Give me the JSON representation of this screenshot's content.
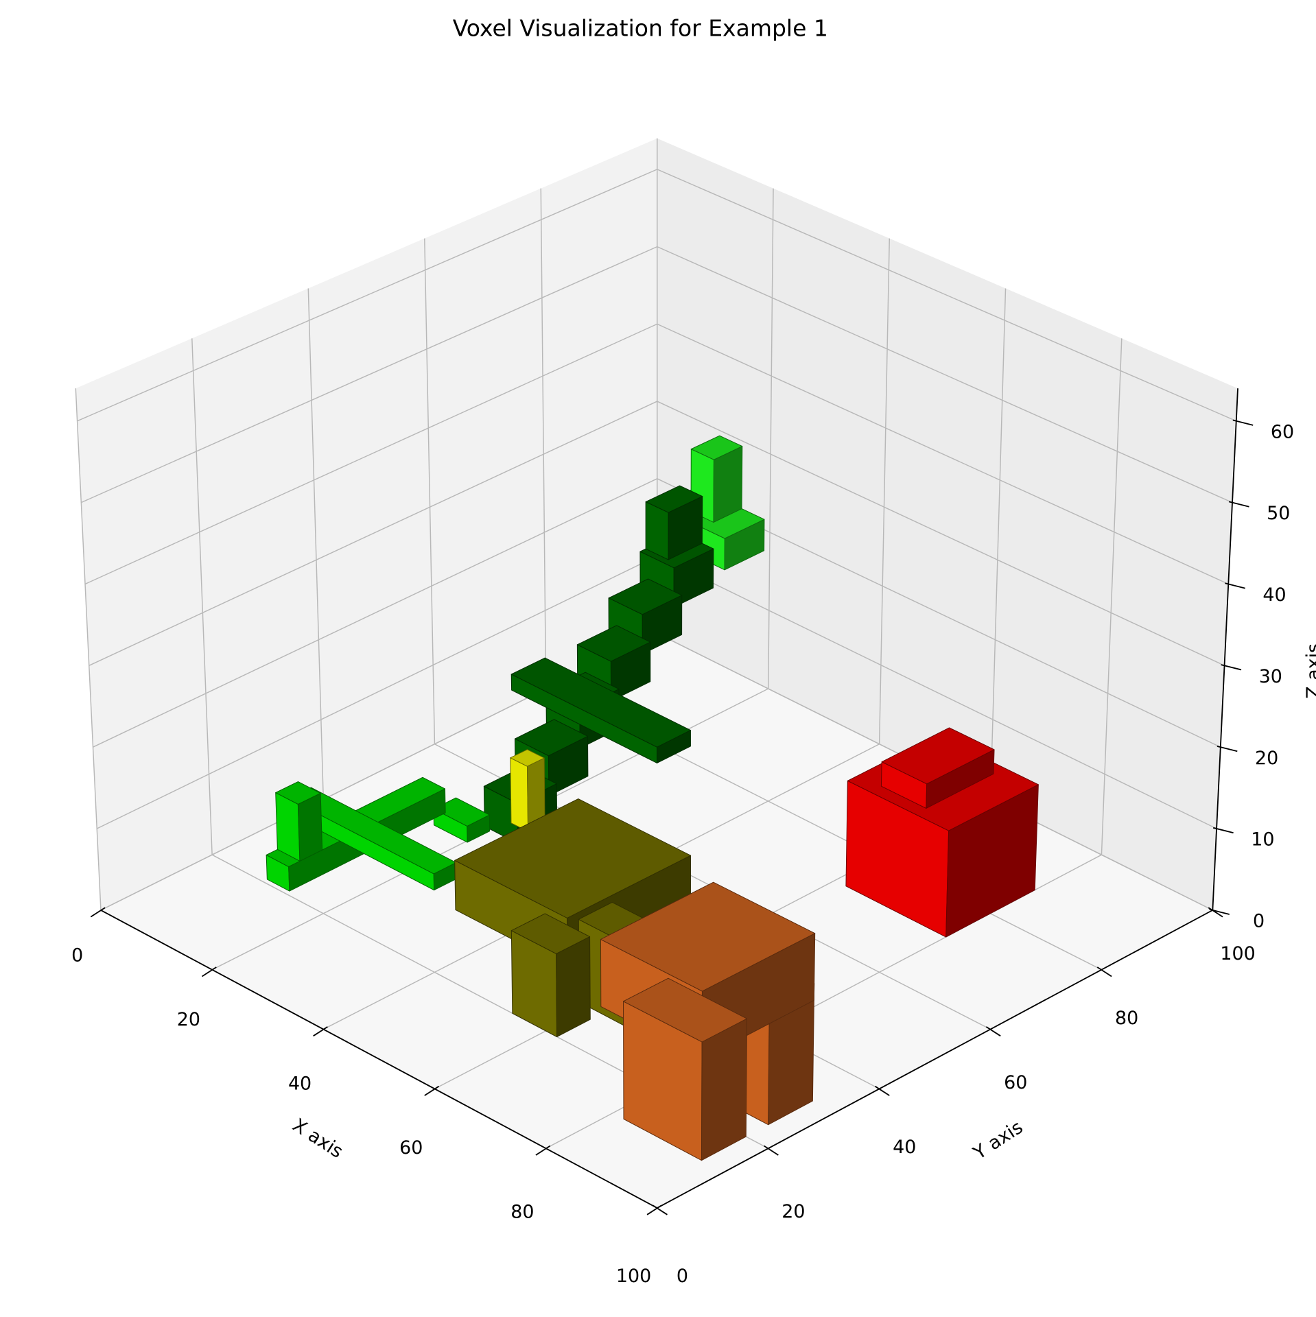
{
  "chart_data": {
    "type": "voxel",
    "title": "Voxel Visualization for Example 1",
    "xlabel": "X axis",
    "ylabel": "Y axis",
    "zlabel": "Z axis",
    "xlim": [
      0,
      100
    ],
    "ylim": [
      0,
      100
    ],
    "zlim": [
      0,
      64
    ],
    "xticks": [
      0,
      20,
      40,
      60,
      80,
      100
    ],
    "yticks": [
      0,
      20,
      40,
      60,
      80,
      100
    ],
    "zticks": [
      0,
      10,
      20,
      30,
      40,
      50,
      60
    ],
    "grid": true,
    "objects": [
      {
        "color": "#00d400",
        "boxes": [
          [
            12,
            16,
            18,
            46,
            2,
            5
          ],
          [
            4,
            30,
            30,
            34,
            3,
            5
          ],
          [
            12,
            16,
            20,
            24,
            5,
            12
          ],
          [
            20,
            26,
            40,
            44,
            4,
            6
          ]
        ]
      },
      {
        "color": "#006400",
        "boxes": [
          [
            19,
            25,
            50,
            57,
            0,
            5
          ],
          [
            17.6,
            23.6,
            57,
            64,
            3,
            8
          ],
          [
            16.2,
            22.2,
            64,
            71,
            6,
            11
          ],
          [
            14.8,
            20.8,
            71,
            78,
            9,
            14
          ],
          [
            13.4,
            19.4,
            78,
            85,
            12,
            17
          ],
          [
            12,
            18,
            85,
            92,
            15,
            20
          ],
          [
            10,
            36,
            64,
            70,
            9,
            11
          ],
          [
            12,
            16,
            86,
            92,
            20,
            26
          ]
        ]
      },
      {
        "color": "#1ee81e",
        "boxes": [
          [
            8,
            20,
            92,
            99,
            18,
            22
          ],
          [
            12,
            16,
            94,
            99,
            22,
            30
          ]
        ]
      },
      {
        "color": "#e6e600",
        "boxes": [
          [
            38,
            41,
            36,
            39,
            12,
            20
          ]
        ]
      },
      {
        "color": "#6e6b00",
        "boxes": [
          [
            54,
            62,
            20,
            26,
            0,
            10
          ],
          [
            58,
            66,
            28,
            34,
            0,
            10
          ],
          [
            44,
            64,
            20,
            42,
            9,
            15
          ]
        ]
      },
      {
        "color": "#e60000",
        "boxes": [
          [
            62,
            80,
            72,
            88,
            0,
            13
          ],
          [
            66,
            74,
            74,
            86,
            13,
            16
          ]
        ]
      },
      {
        "color": "#c8601e",
        "boxes": [
          [
            82,
            96,
            12,
            20,
            0,
            14
          ],
          [
            82,
            96,
            24,
            32,
            0,
            14
          ],
          [
            78,
            96,
            12,
            32,
            12,
            20
          ]
        ]
      }
    ]
  }
}
